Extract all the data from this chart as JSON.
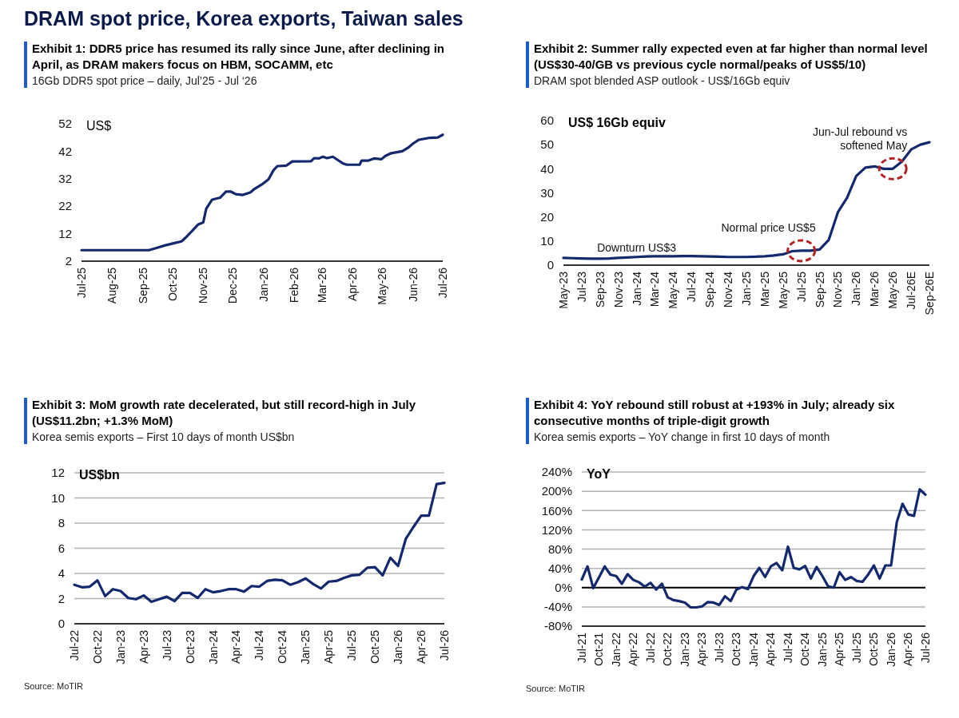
{
  "chart_data": [
    {
      "type": "other",
      "title": "DRAM spot price, Korea exports, Taiwan sales"
    },
    {
      "type": "line",
      "title": "Exhibit 1: DDR5 price has resumed its rally since June, after declining in April, as DRAM makers focus on HBM, SOCAMM, etc",
      "subtitle": "16Gb DDR5 spot price – daily, Jul’25 - Jul ‘26",
      "ylabel": "US$",
      "xlim": [
        "2025-07-01",
        "2026-07-01"
      ],
      "xticks": [
        {
          "value": "2025-07-01",
          "label": "Jul-25"
        },
        {
          "value": "2025-08-01",
          "label": "Aug-25"
        },
        {
          "value": "2025-09-01",
          "label": "Sep-25"
        },
        {
          "value": "2025-10-01",
          "label": "Oct-25"
        },
        {
          "value": "2025-11-01",
          "label": "Nov-25"
        },
        {
          "value": "2025-12-01",
          "label": "Dec-25"
        },
        {
          "value": "2026-01-01",
          "label": "Jan-26"
        },
        {
          "value": "2026-02-01",
          "label": "Feb-26"
        },
        {
          "value": "2026-03-01",
          "label": "Mar-26"
        },
        {
          "value": "2026-04-01",
          "label": "Apr-26"
        },
        {
          "value": "2026-05-01",
          "label": "May-26"
        },
        {
          "value": "2026-06-01",
          "label": "Jun-26"
        },
        {
          "value": "2026-07-01",
          "label": "Jul-26"
        }
      ],
      "ylim": [
        2,
        52
      ],
      "yticks": [
        2,
        12,
        22,
        32,
        42,
        52
      ],
      "grid": false,
      "series": [
        {
          "color": "#14286e",
          "x": [
            "2025-07-01",
            "2025-09-07",
            "2025-09-14",
            "2025-09-23",
            "2025-10-02",
            "2025-10-10",
            "2025-10-14",
            "2025-10-20",
            "2025-10-27",
            "2025-11-01",
            "2025-11-04",
            "2025-11-10",
            "2025-11-18",
            "2025-11-24",
            "2025-11-29",
            "2025-12-04",
            "2025-12-11",
            "2025-12-19",
            "2025-12-22",
            "2025-12-31",
            "2026-01-06",
            "2026-01-11",
            "2026-01-15",
            "2026-01-24",
            "2026-01-30",
            "2026-02-18",
            "2026-02-21",
            "2026-02-26",
            "2026-03-02",
            "2026-03-06",
            "2026-03-12",
            "2026-03-22",
            "2026-03-26",
            "2026-04-08",
            "2026-04-10",
            "2026-04-17",
            "2026-04-23",
            "2026-04-30",
            "2026-05-04",
            "2026-05-10",
            "2026-05-21",
            "2026-05-27",
            "2026-06-01",
            "2026-06-07",
            "2026-06-18",
            "2026-06-26",
            "2026-07-01"
          ],
          "values": [
            6.0,
            6.0,
            6.7,
            7.7,
            8.5,
            9.2,
            10.5,
            12.7,
            15.4,
            16.1,
            21.1,
            24.4,
            25.1,
            27.3,
            27.3,
            26.4,
            26.1,
            27.1,
            28.1,
            30.1,
            31.8,
            35.1,
            36.6,
            36.8,
            38.3,
            38.4,
            39.5,
            39.4,
            40.0,
            39.5,
            40.0,
            37.6,
            37.1,
            37.1,
            38.6,
            38.6,
            39.4,
            39.1,
            40.3,
            41.3,
            42.0,
            43.3,
            44.8,
            46.2,
            46.9,
            47.0,
            48.0
          ]
        }
      ]
    },
    {
      "type": "line",
      "title": "Exhibit 2: Summer rally expected even at far higher than normal level (US$30-40/GB vs previous cycle normal/peaks of US$5/10)",
      "subtitle": "DRAM spot blended ASP outlook - US$/16Gb equiv",
      "ylabel": "US$ 16Gb equiv",
      "categories": [
        "May-23",
        null,
        "Jul-23",
        null,
        "Sep-23",
        null,
        "Nov-23",
        null,
        "Jan-24",
        null,
        "Mar-24",
        null,
        "May-24",
        null,
        "Jul-24",
        null,
        "Sep-24",
        null,
        "Nov-24",
        null,
        "Jan-25",
        null,
        "Mar-25",
        null,
        "May-25",
        null,
        "Jul-25",
        null,
        "Sep-25",
        null,
        "Nov-25",
        null,
        "Jan-26",
        null,
        "Mar-26",
        null,
        "May-26",
        null,
        "Jul-26E",
        null,
        "Sep-26E"
      ],
      "ylim": [
        0,
        60
      ],
      "yticks": [
        0,
        10,
        20,
        30,
        40,
        50,
        60
      ],
      "grid": false,
      "series": [
        {
          "color": "#14286e",
          "values": [
            3.0,
            2.9,
            2.8,
            2.7,
            2.7,
            2.8,
            3.0,
            3.2,
            3.4,
            3.6,
            3.7,
            3.7,
            3.7,
            3.8,
            3.8,
            3.7,
            3.6,
            3.5,
            3.4,
            3.4,
            3.4,
            3.5,
            3.7,
            4.0,
            4.5,
            5.8,
            6.0,
            6.0,
            6.5,
            10.5,
            22,
            28,
            37,
            40.5,
            41,
            40,
            40,
            43,
            48,
            50,
            51
          ]
        }
      ],
      "annotations": [
        {
          "text": "Downturn US$3",
          "x": "Jan-24",
          "y": 3
        },
        {
          "text": "Normal price US$5",
          "x": "Jul-25",
          "y": 6
        },
        {
          "text": "Jun-Jul rebound vs softened May",
          "x": "May-26",
          "y": 40
        }
      ]
    },
    {
      "type": "line",
      "title": "Exhibit 3: MoM growth rate decelerated, but still record-high in July (US$11.2bn; +1.3% MoM)",
      "subtitle": "Korea semis exports – First 10 days of month US$bn",
      "ylabel": "US$bn",
      "categories": [
        "Jul-22",
        null,
        null,
        "Oct-22",
        null,
        null,
        "Jan-23",
        null,
        null,
        "Apr-23",
        null,
        null,
        "Jul-23",
        null,
        null,
        "Oct-23",
        null,
        null,
        "Jan-24",
        null,
        null,
        "Apr-24",
        null,
        null,
        "Jul-24",
        null,
        null,
        "Oct-24",
        null,
        null,
        "Jan-25",
        null,
        null,
        "Apr-25",
        null,
        null,
        "Jul-25",
        null,
        null,
        "Oct-25",
        null,
        null,
        "Jan-26",
        null,
        null,
        "Apr-26",
        null,
        null,
        "Jul-26"
      ],
      "ylim": [
        0,
        12
      ],
      "yticks": [
        0,
        2,
        4,
        6,
        8,
        10,
        12
      ],
      "grid": "y",
      "series": [
        {
          "color": "#14286e",
          "values": [
            3.1,
            2.9,
            2.95,
            3.45,
            2.2,
            2.75,
            2.6,
            2.05,
            1.95,
            2.25,
            1.75,
            1.95,
            2.15,
            1.8,
            2.45,
            2.45,
            2.05,
            2.75,
            2.5,
            2.6,
            2.75,
            2.75,
            2.55,
            3.0,
            2.95,
            3.4,
            3.5,
            3.45,
            3.1,
            3.3,
            3.6,
            3.15,
            2.8,
            3.35,
            3.4,
            3.65,
            3.85,
            3.9,
            4.45,
            4.5,
            3.85,
            5.25,
            4.6,
            6.75,
            7.7,
            8.6,
            8.6,
            11.1,
            11.2
          ]
        }
      ],
      "annotations": [
        "Source: MoTIR"
      ]
    },
    {
      "type": "line",
      "title": "Exhibit 4: YoY rebound still robust at +193% in July; already six consecutive months of triple-digit growth",
      "subtitle": "Korea semis exports – YoY change in first 10 days of month",
      "ylabel": "YoY",
      "categories": [
        "Jul-21",
        null,
        null,
        "Oct-21",
        null,
        null,
        "Jan-22",
        null,
        null,
        "Apr-22",
        null,
        null,
        "Jul-22",
        null,
        null,
        "Oct-22",
        null,
        null,
        "Jan-23",
        null,
        null,
        "Apr-23",
        null,
        null,
        "Jul-23",
        null,
        null,
        "Oct-23",
        null,
        null,
        "Jan-24",
        null,
        null,
        "Apr-24",
        null,
        null,
        "Jul-24",
        null,
        null,
        "Oct-24",
        null,
        null,
        "Jan-25",
        null,
        null,
        "Apr-25",
        null,
        null,
        "Jul-25",
        null,
        null,
        "Oct-25",
        null,
        null,
        "Jan-26",
        null,
        null,
        "Apr-26",
        null,
        null,
        "Jul-26"
      ],
      "ylim": [
        -80,
        240
      ],
      "yticks": [
        {
          "value": -80,
          "label": "-80%"
        },
        {
          "value": -40,
          "label": "-40%"
        },
        {
          "value": 0,
          "label": "0%"
        },
        {
          "value": 40,
          "label": "40%"
        },
        {
          "value": 80,
          "label": "80%"
        },
        {
          "value": 120,
          "label": "120%"
        },
        {
          "value": 160,
          "label": "160%"
        },
        {
          "value": 200,
          "label": "200%"
        },
        {
          "value": 240,
          "label": "240%"
        }
      ],
      "grid": "y",
      "ref_lines": [
        {
          "axis": "y",
          "value": 0,
          "color": "#000000"
        }
      ],
      "series": [
        {
          "color": "#14286e",
          "values": [
            17,
            44,
            -1,
            21,
            44,
            27,
            24,
            8,
            28,
            16,
            11,
            2,
            10,
            -4,
            8,
            -20,
            -26,
            -28,
            -31,
            -41,
            -41,
            -39,
            -30,
            -31,
            -36,
            -18,
            -28,
            -4,
            1,
            -3,
            24,
            41,
            22,
            44,
            51,
            36,
            85,
            41,
            38,
            45,
            19,
            43,
            24,
            3,
            0,
            32,
            16,
            22,
            14,
            12,
            27,
            46,
            19,
            46,
            46,
            136,
            174,
            152,
            149,
            204,
            193
          ]
        }
      ],
      "annotations": [
        "Source: MoTIR"
      ]
    }
  ]
}
